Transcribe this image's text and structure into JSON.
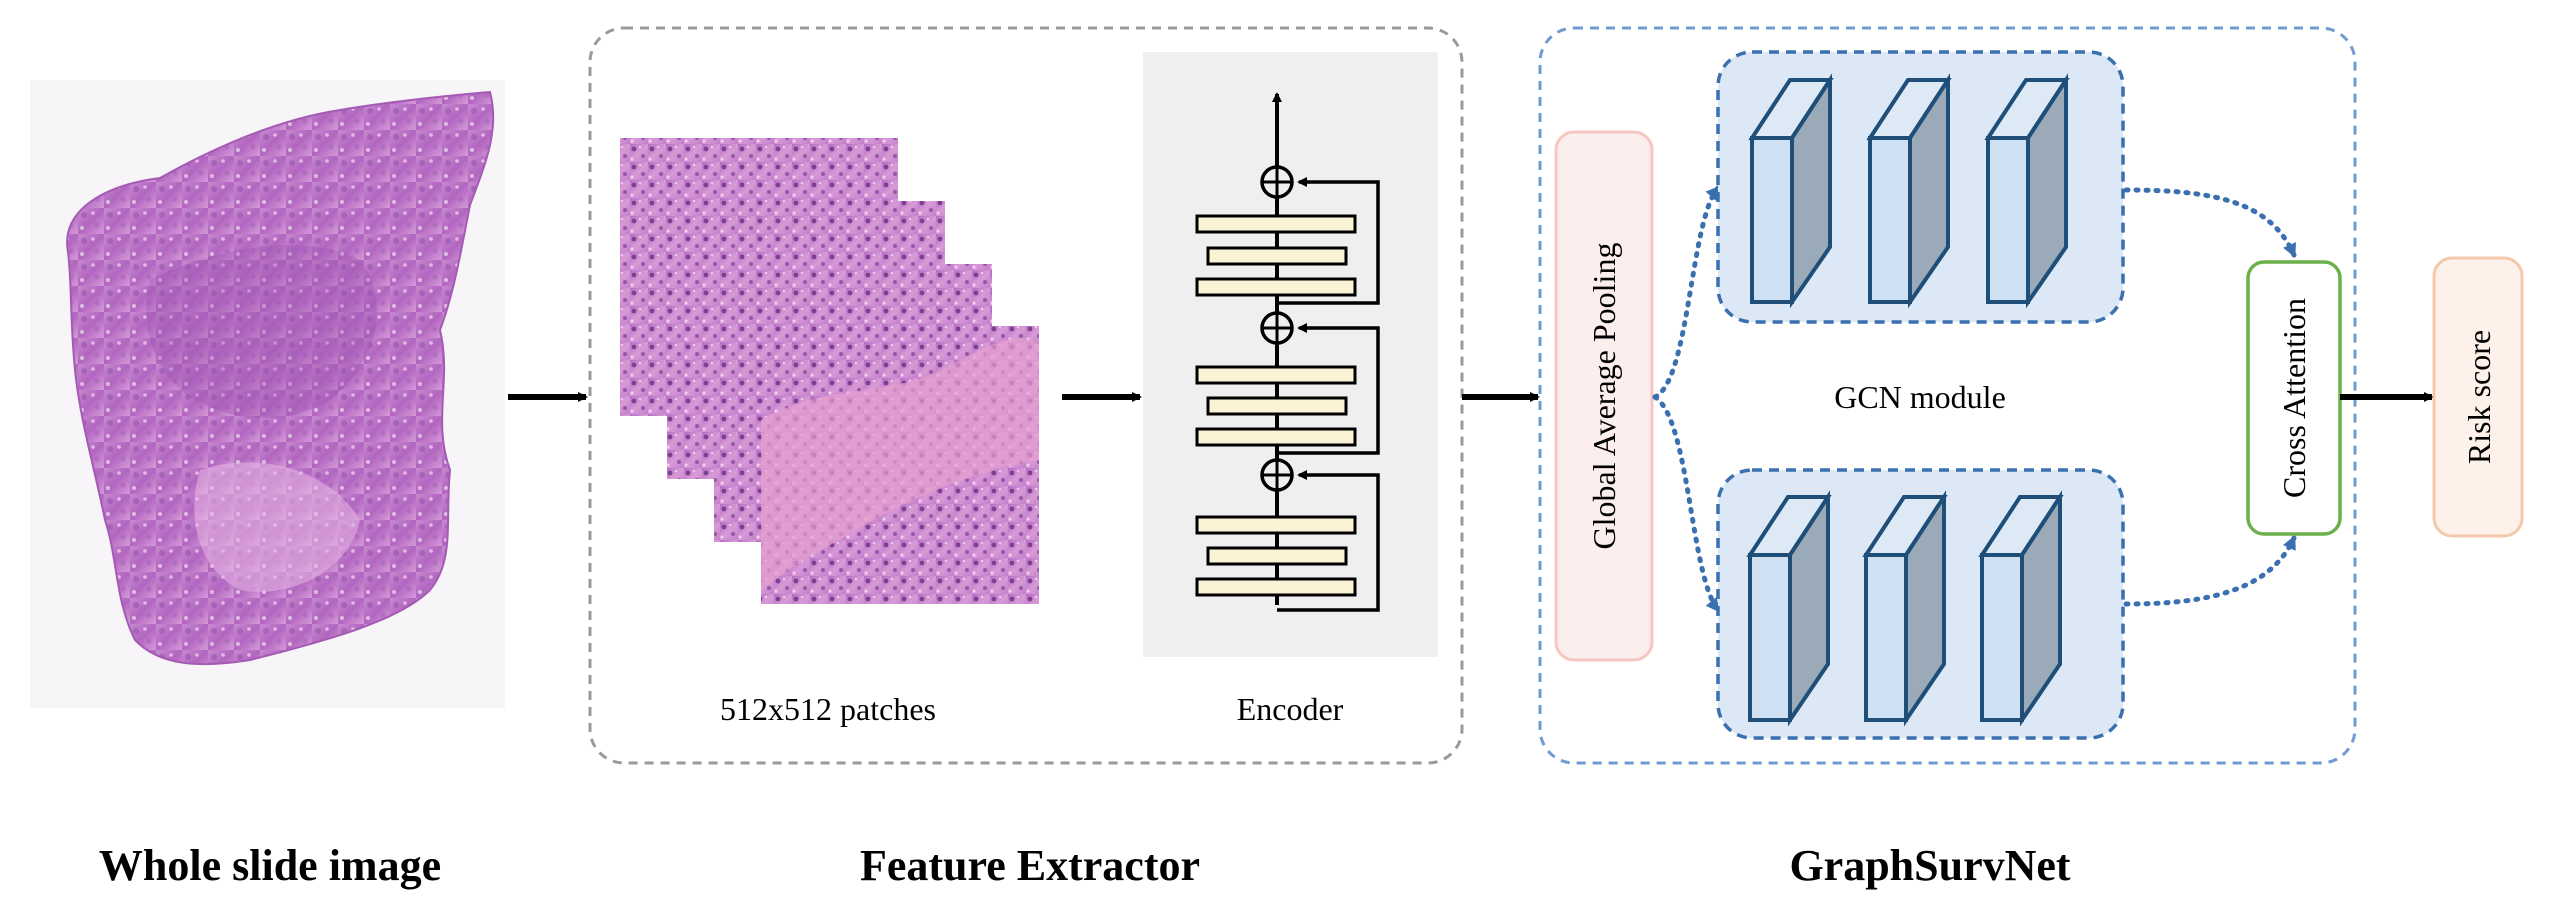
{
  "wsi": {
    "caption": "Whole slide image"
  },
  "feature_extractor": {
    "caption": "Feature Extractor",
    "patches_label": "512x512 patches",
    "encoder_label": "Encoder"
  },
  "graphsurvnet": {
    "caption": "GraphSurvNet",
    "pooling_label": "Global Average Pooling",
    "gcn_label": "GCN module",
    "attention_label": "Cross Attention"
  },
  "output": {
    "label": "Risk score"
  },
  "colors": {
    "box_dashed_gray": "#9a9a9a",
    "box_dashed_blue": "#6f9bd1",
    "pooling_fill": "#fdeeee",
    "pooling_border": "#f4c7c3",
    "gcn_fill": "#dce8f6",
    "gcn_border": "#3a6fb0",
    "block_front": "#cfe0f2",
    "block_side": "#9aaab8",
    "block_stroke": "#1f4e79",
    "attention_border": "#6bb04b",
    "risk_fill": "#fdf1ea",
    "risk_border": "#f3c9ac",
    "encoder_bg": "#efefef",
    "encoder_bar": "#fbf3d5"
  }
}
